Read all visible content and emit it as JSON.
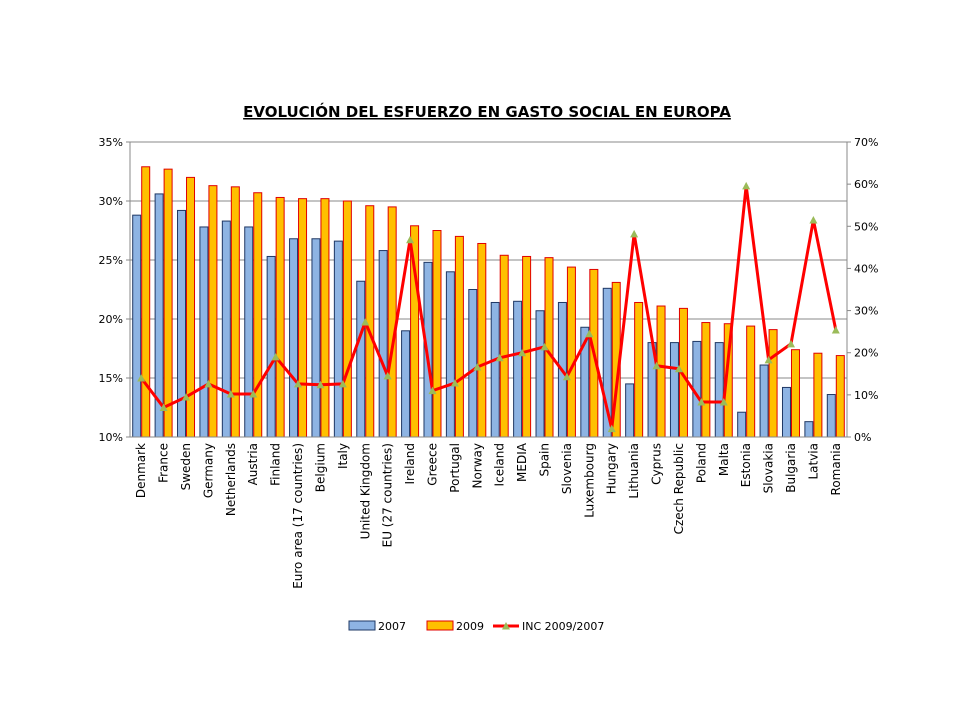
{
  "chart_data": {
    "type": "bar+line",
    "title": "EVOLUCIÓN DEL ESFUERZO EN GASTO SOCIAL EN EUROPA",
    "categories": [
      "Denmark",
      "France",
      "Sweden",
      "Germany",
      "Netherlands",
      "Austria",
      "Finland",
      "Euro area (17 countries)",
      "Belgium",
      "Italy",
      "United Kingdom",
      "EU (27 countries)",
      "Ireland",
      "Greece",
      "Portugal",
      "Norway",
      "Iceland",
      "MEDIA",
      "Spain",
      "Slovenia",
      "Luxembourg",
      "Hungary",
      "Lithuania",
      "Cyprus",
      "Czech Republic",
      "Poland",
      "Malta",
      "Estonia",
      "Slovakia",
      "Bulgaria",
      "Latvia",
      "Romania"
    ],
    "series": [
      {
        "name": "2007",
        "type": "bar",
        "axis": "left",
        "color": "#8eb4e3",
        "values": [
          28.8,
          30.6,
          29.2,
          27.8,
          28.3,
          27.8,
          25.3,
          26.8,
          26.8,
          26.6,
          23.2,
          25.8,
          19.0,
          24.8,
          24.0,
          22.5,
          21.4,
          21.5,
          20.7,
          21.4,
          19.3,
          22.6,
          14.5,
          18.0,
          18.0,
          18.1,
          18.0,
          12.1,
          16.1,
          14.2,
          11.3,
          13.6
        ]
      },
      {
        "name": "2009",
        "type": "bar",
        "axis": "left",
        "color": "#ffc000",
        "values": [
          32.9,
          32.7,
          32.0,
          31.3,
          31.2,
          30.7,
          30.3,
          30.2,
          30.2,
          30.0,
          29.6,
          29.5,
          27.9,
          27.5,
          27.0,
          26.4,
          25.4,
          25.3,
          25.2,
          24.4,
          24.2,
          23.1,
          21.4,
          21.1,
          20.9,
          19.7,
          19.6,
          19.4,
          19.1,
          17.4,
          17.1,
          16.9
        ]
      },
      {
        "name": "INC 2009/2007",
        "type": "line",
        "axis": "right",
        "color": "#ff0000",
        "values": [
          14,
          7,
          9.5,
          12.6,
          10.2,
          10.2,
          19,
          12.6,
          12.4,
          12.6,
          27.3,
          14.5,
          46.8,
          11,
          12.8,
          16.6,
          18.8,
          20,
          21.4,
          14.3,
          24.5,
          2,
          48.2,
          16.9,
          16.2,
          8.3,
          8.3,
          59.6,
          18.3,
          22.1,
          51.5,
          25.4
        ]
      }
    ],
    "left_axis": {
      "min": 10,
      "max": 35,
      "step": 5,
      "ticks": [
        "10%",
        "15%",
        "20%",
        "25%",
        "30%",
        "35%"
      ]
    },
    "right_axis": {
      "min": 0,
      "max": 70,
      "step": 10,
      "ticks": [
        "0%",
        "10%",
        "20%",
        "30%",
        "40%",
        "50%",
        "60%",
        "70%"
      ]
    },
    "grid": true,
    "legend": "bottom"
  }
}
